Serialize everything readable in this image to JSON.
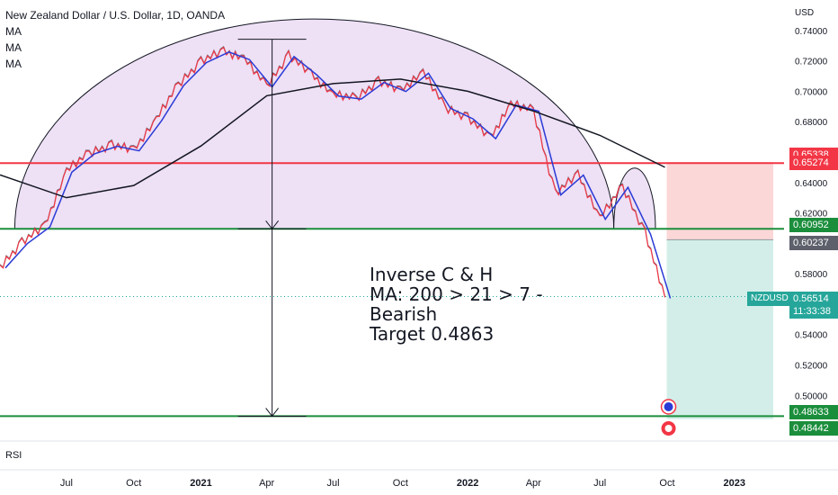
{
  "header": {
    "title": "New Zealand Dollar / U.S. Dollar, 1D, OANDA",
    "indicators": [
      "MA",
      "MA",
      "MA"
    ]
  },
  "currency": "USD",
  "annotation": {
    "lines": [
      "Inverse C & H",
      "MA: 200 > 21 > 7 -",
      "Bearish",
      "Target 0.4863"
    ]
  },
  "rsi_label": "RSI",
  "symbol_tag": "NZDUSD",
  "current_price": {
    "value": "0.56514",
    "countdown": "11:33:38"
  },
  "price_labels": [
    {
      "text": "0.65338",
      "price": 0.65338,
      "color": "#f23645"
    },
    {
      "text": "0.65274",
      "price": 0.65274,
      "color": "#f23645"
    },
    {
      "text": "0.60952",
      "price": 0.60952,
      "color": "#1b8e3c"
    },
    {
      "text": "0.60237",
      "price": 0.60237,
      "color": "#5d606b"
    },
    {
      "text": "0.48633",
      "price": 0.48633,
      "color": "#1b8e3c"
    },
    {
      "text": "0.48442",
      "price": 0.48442,
      "color": "#1b8e3c"
    }
  ],
  "colors": {
    "resistance": "#f23645",
    "neckline": "#1b8e3c",
    "cup_fill": "#e8d5f2",
    "target_zone": "#d3eee8",
    "stop_zone": "#fbd7d7",
    "ma_fast": "#f23645",
    "ma_mid": "#2a3bd6",
    "ma_slow": "#131722"
  },
  "chart_data": {
    "type": "line",
    "title": "New Zealand Dollar / U.S. Dollar, 1D, OANDA",
    "ylim": [
      0.47,
      0.76
    ],
    "y_ticks": [
      "0.74000",
      "0.72000",
      "0.70000",
      "0.68000",
      "0.64000",
      "0.62000",
      "0.58000",
      "0.54000",
      "0.52000",
      "0.50000"
    ],
    "x_tick_labels": [
      "Jul",
      "Oct",
      "2021",
      "Apr",
      "Jul",
      "Oct",
      "2022",
      "Apr",
      "Jul",
      "Oct",
      "2023"
    ],
    "x_tick_dates": [
      "2020-07-01",
      "2020-10-01",
      "2021-01-01",
      "2021-04-01",
      "2021-07-01",
      "2021-10-01",
      "2022-01-01",
      "2022-04-01",
      "2022-07-01",
      "2022-10-01",
      "2023-01-01"
    ],
    "xlim": [
      "2020-04-01",
      "2023-03-10"
    ],
    "horizontal_levels": [
      0.65274,
      0.60952,
      0.48633
    ],
    "measure_arrow": {
      "x": "2021-04-01",
      "from": 0.7342,
      "to": 0.4863
    },
    "series": [
      {
        "name": "",
        "role": "price",
        "x": [
          "2020-04-01",
          "2020-05-01",
          "2020-06-01",
          "2020-07-01",
          "2020-08-01",
          "2020-09-01",
          "2020-10-01",
          "2020-11-01",
          "2020-12-01",
          "2021-01-01",
          "2021-02-01",
          "2021-03-01",
          "2021-04-01",
          "2021-05-01",
          "2021-06-01",
          "2021-07-01",
          "2021-08-01",
          "2021-09-01",
          "2021-10-01",
          "2021-11-01",
          "2021-12-01",
          "2022-01-01",
          "2022-02-01",
          "2022-03-01",
          "2022-04-01",
          "2022-05-01",
          "2022-06-01",
          "2022-07-01",
          "2022-08-01",
          "2022-09-01",
          "2022-09-28"
        ],
        "values": [
          0.585,
          0.601,
          0.612,
          0.648,
          0.66,
          0.665,
          0.662,
          0.682,
          0.705,
          0.72,
          0.727,
          0.722,
          0.704,
          0.724,
          0.712,
          0.698,
          0.696,
          0.707,
          0.701,
          0.713,
          0.69,
          0.683,
          0.67,
          0.692,
          0.688,
          0.633,
          0.646,
          0.617,
          0.638,
          0.607,
          0.565
        ]
      },
      {
        "name": "",
        "role": "ma_200",
        "x": [
          "2020-04-01",
          "2020-07-01",
          "2020-10-01",
          "2021-01-01",
          "2021-04-01",
          "2021-07-01",
          "2021-10-01",
          "2022-01-01",
          "2022-04-01",
          "2022-07-01",
          "2022-09-28"
        ],
        "values": [
          0.645,
          0.63,
          0.638,
          0.664,
          0.697,
          0.705,
          0.708,
          0.7,
          0.687,
          0.671,
          0.65
        ]
      }
    ]
  }
}
